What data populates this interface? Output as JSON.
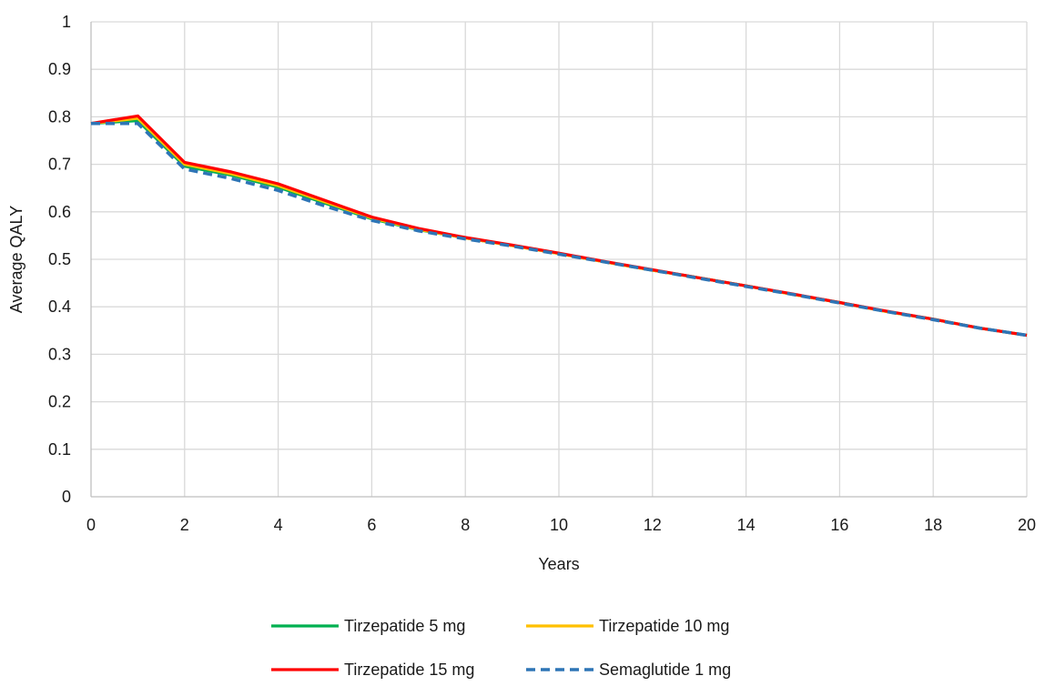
{
  "chart_data": {
    "type": "line",
    "title": "",
    "xlabel": "Years",
    "ylabel": "Average QALY",
    "xlim": [
      0,
      20
    ],
    "ylim": [
      0,
      1
    ],
    "xticks": [
      0,
      2,
      4,
      6,
      8,
      10,
      12,
      14,
      16,
      18,
      20
    ],
    "yticks": [
      0,
      0.1,
      0.2,
      0.3,
      0.4,
      0.5,
      0.6,
      0.7,
      0.8,
      0.9,
      1
    ],
    "xtick_labels": [
      "0",
      "2",
      "4",
      "6",
      "8",
      "10",
      "12",
      "14",
      "16",
      "18",
      "20"
    ],
    "ytick_labels": [
      "0",
      "0.1",
      "0.2",
      "0.3",
      "0.4",
      "0.5",
      "0.6",
      "0.7",
      "0.8",
      "0.9",
      "1"
    ],
    "grid": "both",
    "legend_position": "bottom",
    "x": [
      0,
      1,
      2,
      3,
      4,
      5,
      6,
      7,
      8,
      9,
      10,
      11,
      12,
      13,
      14,
      15,
      16,
      17,
      18,
      19,
      20
    ],
    "series": [
      {
        "name": "Tirzepatide 5 mg",
        "color": "#00b050",
        "dash": "solid",
        "values": [
          0.786,
          0.792,
          0.696,
          0.677,
          0.652,
          0.618,
          0.585,
          0.562,
          0.545,
          0.529,
          0.512,
          0.494,
          0.477,
          0.461,
          0.444,
          0.426,
          0.409,
          0.39,
          0.374,
          0.355,
          0.34
        ]
      },
      {
        "name": "Tirzepatide 10 mg",
        "color": "#ffc000",
        "dash": "solid",
        "values": [
          0.786,
          0.797,
          0.7,
          0.68,
          0.655,
          0.621,
          0.587,
          0.563,
          0.545,
          0.529,
          0.512,
          0.494,
          0.477,
          0.461,
          0.444,
          0.426,
          0.409,
          0.39,
          0.374,
          0.355,
          0.34
        ]
      },
      {
        "name": "Tirzepatide 15 mg",
        "color": "#ff0000",
        "dash": "solid",
        "values": [
          0.786,
          0.802,
          0.704,
          0.684,
          0.659,
          0.624,
          0.589,
          0.565,
          0.546,
          0.53,
          0.513,
          0.495,
          0.478,
          0.461,
          0.444,
          0.427,
          0.409,
          0.391,
          0.374,
          0.355,
          0.34
        ]
      },
      {
        "name": "Semaglutide 1 mg",
        "color": "#2e75b6",
        "dash": "dashed",
        "values": [
          0.786,
          0.786,
          0.69,
          0.67,
          0.645,
          0.612,
          0.582,
          0.56,
          0.543,
          0.528,
          0.511,
          0.494,
          0.477,
          0.46,
          0.443,
          0.426,
          0.408,
          0.39,
          0.373,
          0.355,
          0.34
        ]
      }
    ]
  }
}
